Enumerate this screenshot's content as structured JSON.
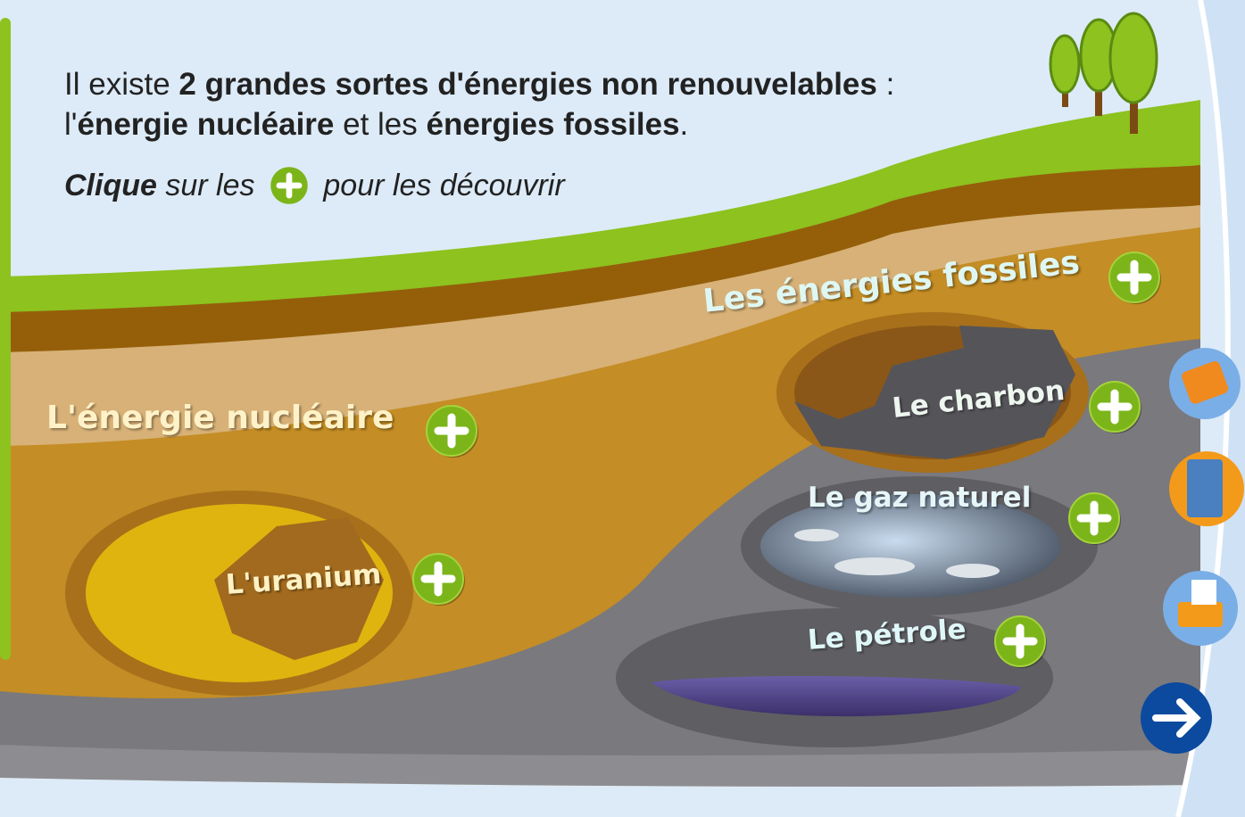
{
  "intro": {
    "line1": [
      "Il existe ",
      "2 grandes sortes d'énergies non renouvelables",
      " :"
    ],
    "line2": [
      "l'",
      "énergie nucléaire",
      " et les ",
      "énergies fossiles",
      "."
    ]
  },
  "instruction": [
    "Clique",
    " sur les ",
    " pour les découvrir"
  ],
  "labels": [
    "Les énergies fossiles",
    "L'énergie nucléaire",
    "Le charbon",
    "Le gaz naturel",
    "L'uranium",
    "Le pétrole"
  ]
}
